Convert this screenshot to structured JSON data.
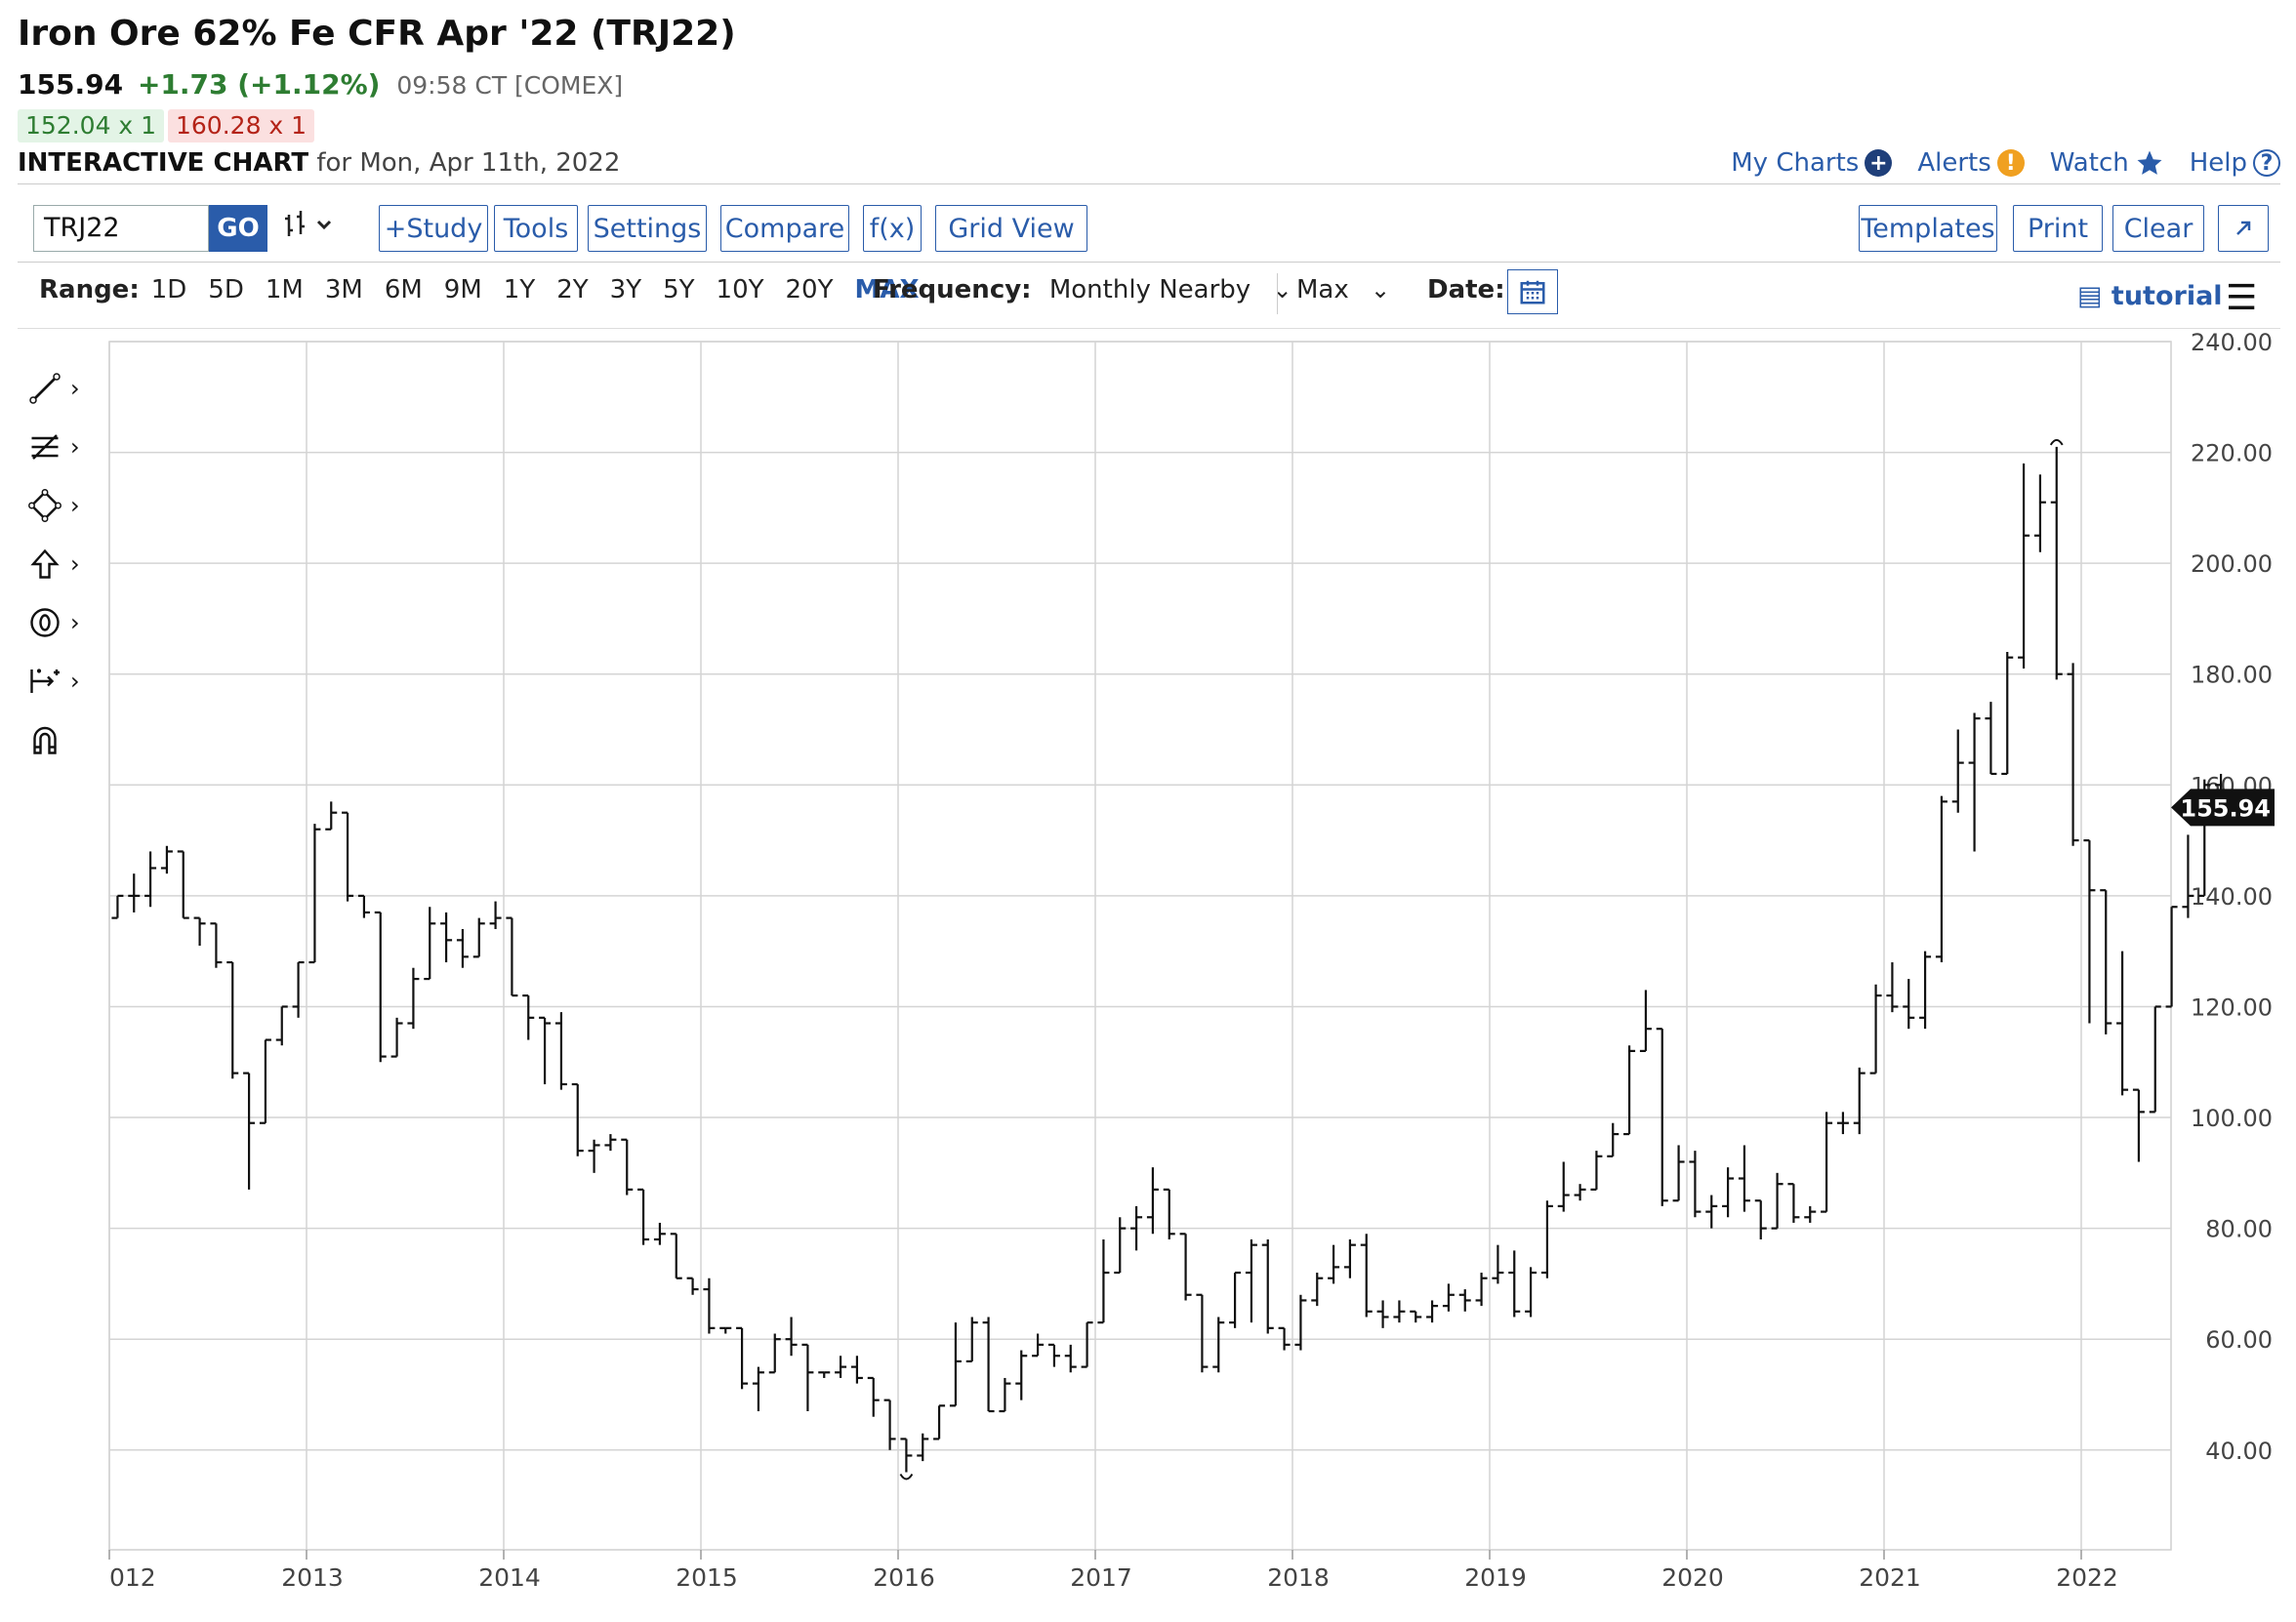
{
  "header": {
    "title": "Iron Ore 62% Fe CFR Apr '22 (TRJ22)",
    "last": "155.94",
    "change": "+1.73 (+1.12%)",
    "time": "09:58 CT [COMEX]",
    "bid": "152.04 x 1",
    "ask": "160.28 x 1",
    "interactive_label": "INTERACTIVE CHART",
    "interactive_date": "for Mon, Apr 11th, 2022"
  },
  "links": {
    "my_charts": "My Charts",
    "alerts": "Alerts",
    "watch": "Watch",
    "help": "Help"
  },
  "toolbar": {
    "symbol": "TRJ22",
    "go": "GO",
    "study": "+Study",
    "tools": "Tools",
    "settings": "Settings",
    "compare": "Compare",
    "fx": "f(x)",
    "grid_view": "Grid View",
    "templates": "Templates",
    "print": "Print",
    "clear": "Clear"
  },
  "range": {
    "label": "Range:",
    "options": [
      "1D",
      "5D",
      "1M",
      "3M",
      "6M",
      "9M",
      "1Y",
      "2Y",
      "3Y",
      "5Y",
      "10Y",
      "20Y",
      "MAX"
    ],
    "selected": "MAX",
    "frequency_label": "Frequency:",
    "frequency": "Monthly Nearby",
    "period": "Max",
    "date_label": "Date:",
    "tutorial": "tutorial"
  },
  "colors": {
    "accent": "#2a5caa",
    "up": "#2e7d32",
    "down": "#b42318"
  },
  "drawing_tools": [
    "line-tool-icon",
    "fib-tool-icon",
    "shape-tool-icon",
    "arrow-tool-icon",
    "counter-tool-icon",
    "measure-tool-icon",
    "magnet-icon"
  ],
  "chart_data": {
    "type": "ohlc",
    "frequency": "monthly",
    "x_ticks": [
      "012",
      "2013",
      "2014",
      "2015",
      "2016",
      "2017",
      "2018",
      "2019",
      "2020",
      "2021",
      "2022"
    ],
    "y_ticks": [
      "240.00",
      "220.00",
      "200.00",
      "180.00",
      "160.00",
      "140.00",
      "120.00",
      "100.00",
      "80.00",
      "60.00",
      "40.00"
    ],
    "ylim": [
      22,
      240
    ],
    "x_start": 2012.0,
    "last_price_label": "155.94",
    "high_marker_value": 221,
    "low_marker_value": 36,
    "bars": [
      [
        136,
        140,
        136,
        140
      ],
      [
        140,
        144,
        137,
        140
      ],
      [
        140,
        148,
        138,
        145
      ],
      [
        145,
        149,
        144,
        148
      ],
      [
        148,
        148,
        136,
        136
      ],
      [
        136,
        136,
        131,
        135
      ],
      [
        135,
        135,
        127,
        128
      ],
      [
        128,
        128,
        107,
        108
      ],
      [
        108,
        108,
        87,
        99
      ],
      [
        99,
        114,
        99,
        114
      ],
      [
        114,
        120,
        113,
        120
      ],
      [
        120,
        128,
        118,
        128
      ],
      [
        128,
        153,
        128,
        152
      ],
      [
        152,
        157,
        152,
        155
      ],
      [
        155,
        155,
        139,
        140
      ],
      [
        140,
        140,
        136,
        137
      ],
      [
        137,
        137,
        110,
        111
      ],
      [
        111,
        118,
        111,
        117
      ],
      [
        117,
        127,
        116,
        125
      ],
      [
        125,
        138,
        125,
        135
      ],
      [
        135,
        137,
        128,
        132
      ],
      [
        132,
        134,
        127,
        129
      ],
      [
        129,
        136,
        129,
        135
      ],
      [
        135,
        139,
        134,
        136
      ],
      [
        136,
        136,
        122,
        122
      ],
      [
        122,
        122,
        114,
        118
      ],
      [
        118,
        118,
        106,
        117
      ],
      [
        117,
        119,
        105,
        106
      ],
      [
        106,
        106,
        93,
        94
      ],
      [
        94,
        96,
        90,
        95
      ],
      [
        95,
        97,
        94,
        96
      ],
      [
        96,
        96,
        86,
        87
      ],
      [
        87,
        87,
        77,
        78
      ],
      [
        78,
        81,
        77,
        79
      ],
      [
        79,
        79,
        71,
        71
      ],
      [
        71,
        71,
        68,
        69
      ],
      [
        69,
        71,
        61,
        62
      ],
      [
        62,
        62,
        61,
        62
      ],
      [
        62,
        62,
        51,
        52
      ],
      [
        52,
        55,
        47,
        54
      ],
      [
        54,
        61,
        54,
        60
      ],
      [
        60,
        64,
        57,
        59
      ],
      [
        59,
        59,
        47,
        54
      ],
      [
        54,
        54,
        53,
        54
      ],
      [
        54,
        57,
        53,
        55
      ],
      [
        55,
        57,
        52,
        53
      ],
      [
        53,
        53,
        46,
        49
      ],
      [
        49,
        49,
        40,
        42
      ],
      [
        42,
        42,
        36,
        39
      ],
      [
        39,
        43,
        38,
        42
      ],
      [
        42,
        48,
        42,
        48
      ],
      [
        48,
        63,
        48,
        56
      ],
      [
        56,
        64,
        56,
        63
      ],
      [
        63,
        64,
        47,
        47
      ],
      [
        47,
        53,
        47,
        52
      ],
      [
        52,
        58,
        49,
        57
      ],
      [
        57,
        61,
        57,
        59
      ],
      [
        59,
        59,
        55,
        57
      ],
      [
        57,
        59,
        54,
        55
      ],
      [
        55,
        63,
        55,
        63
      ],
      [
        63,
        78,
        63,
        72
      ],
      [
        72,
        82,
        72,
        80
      ],
      [
        80,
        84,
        76,
        82
      ],
      [
        82,
        91,
        79,
        87
      ],
      [
        87,
        87,
        78,
        79
      ],
      [
        79,
        79,
        67,
        68
      ],
      [
        68,
        68,
        54,
        55
      ],
      [
        55,
        64,
        54,
        63
      ],
      [
        63,
        72,
        62,
        72
      ],
      [
        72,
        78,
        63,
        77
      ],
      [
        77,
        78,
        61,
        62
      ],
      [
        62,
        62,
        58,
        59
      ],
      [
        59,
        68,
        58,
        67
      ],
      [
        67,
        72,
        66,
        71
      ],
      [
        71,
        77,
        70,
        73
      ],
      [
        73,
        78,
        71,
        77
      ],
      [
        77,
        79,
        64,
        65
      ],
      [
        65,
        67,
        62,
        64
      ],
      [
        64,
        67,
        63,
        65
      ],
      [
        65,
        65,
        63,
        64
      ],
      [
        64,
        67,
        63,
        66
      ],
      [
        66,
        70,
        65,
        68
      ],
      [
        68,
        69,
        65,
        67
      ],
      [
        67,
        72,
        66,
        71
      ],
      [
        71,
        77,
        70,
        72
      ],
      [
        72,
        76,
        64,
        65
      ],
      [
        65,
        73,
        64,
        72
      ],
      [
        72,
        85,
        71,
        84
      ],
      [
        84,
        92,
        83,
        86
      ],
      [
        86,
        88,
        85,
        87
      ],
      [
        87,
        94,
        87,
        93
      ],
      [
        93,
        99,
        93,
        97
      ],
      [
        97,
        113,
        97,
        112
      ],
      [
        112,
        123,
        112,
        116
      ],
      [
        116,
        116,
        84,
        85
      ],
      [
        85,
        95,
        85,
        92
      ],
      [
        92,
        94,
        82,
        83
      ],
      [
        83,
        86,
        80,
        84
      ],
      [
        84,
        91,
        82,
        89
      ],
      [
        89,
        95,
        83,
        85
      ],
      [
        85,
        85,
        78,
        80
      ],
      [
        80,
        90,
        80,
        88
      ],
      [
        88,
        88,
        81,
        82
      ],
      [
        82,
        84,
        81,
        83
      ],
      [
        83,
        101,
        83,
        99
      ],
      [
        99,
        101,
        97,
        99
      ],
      [
        99,
        109,
        97,
        108
      ],
      [
        108,
        124,
        108,
        122
      ],
      [
        122,
        128,
        119,
        120
      ],
      [
        120,
        125,
        116,
        118
      ],
      [
        118,
        130,
        116,
        129
      ],
      [
        129,
        158,
        128,
        157
      ],
      [
        157,
        170,
        155,
        164
      ],
      [
        164,
        173,
        148,
        172
      ],
      [
        172,
        175,
        162,
        162
      ],
      [
        162,
        184,
        162,
        183
      ],
      [
        183,
        218,
        181,
        205
      ],
      [
        205,
        216,
        202,
        211
      ],
      [
        211,
        221,
        179,
        180
      ],
      [
        180,
        182,
        149,
        150
      ],
      [
        150,
        144,
        117,
        141
      ],
      [
        141,
        141,
        115,
        117
      ],
      [
        117,
        130,
        104,
        105
      ],
      [
        105,
        105,
        92,
        101
      ],
      [
        101,
        120,
        101,
        120
      ],
      [
        120,
        138,
        120,
        138
      ],
      [
        138,
        151,
        136,
        140
      ],
      [
        140,
        161,
        140,
        160
      ],
      [
        160,
        162,
        153,
        156
      ]
    ]
  }
}
